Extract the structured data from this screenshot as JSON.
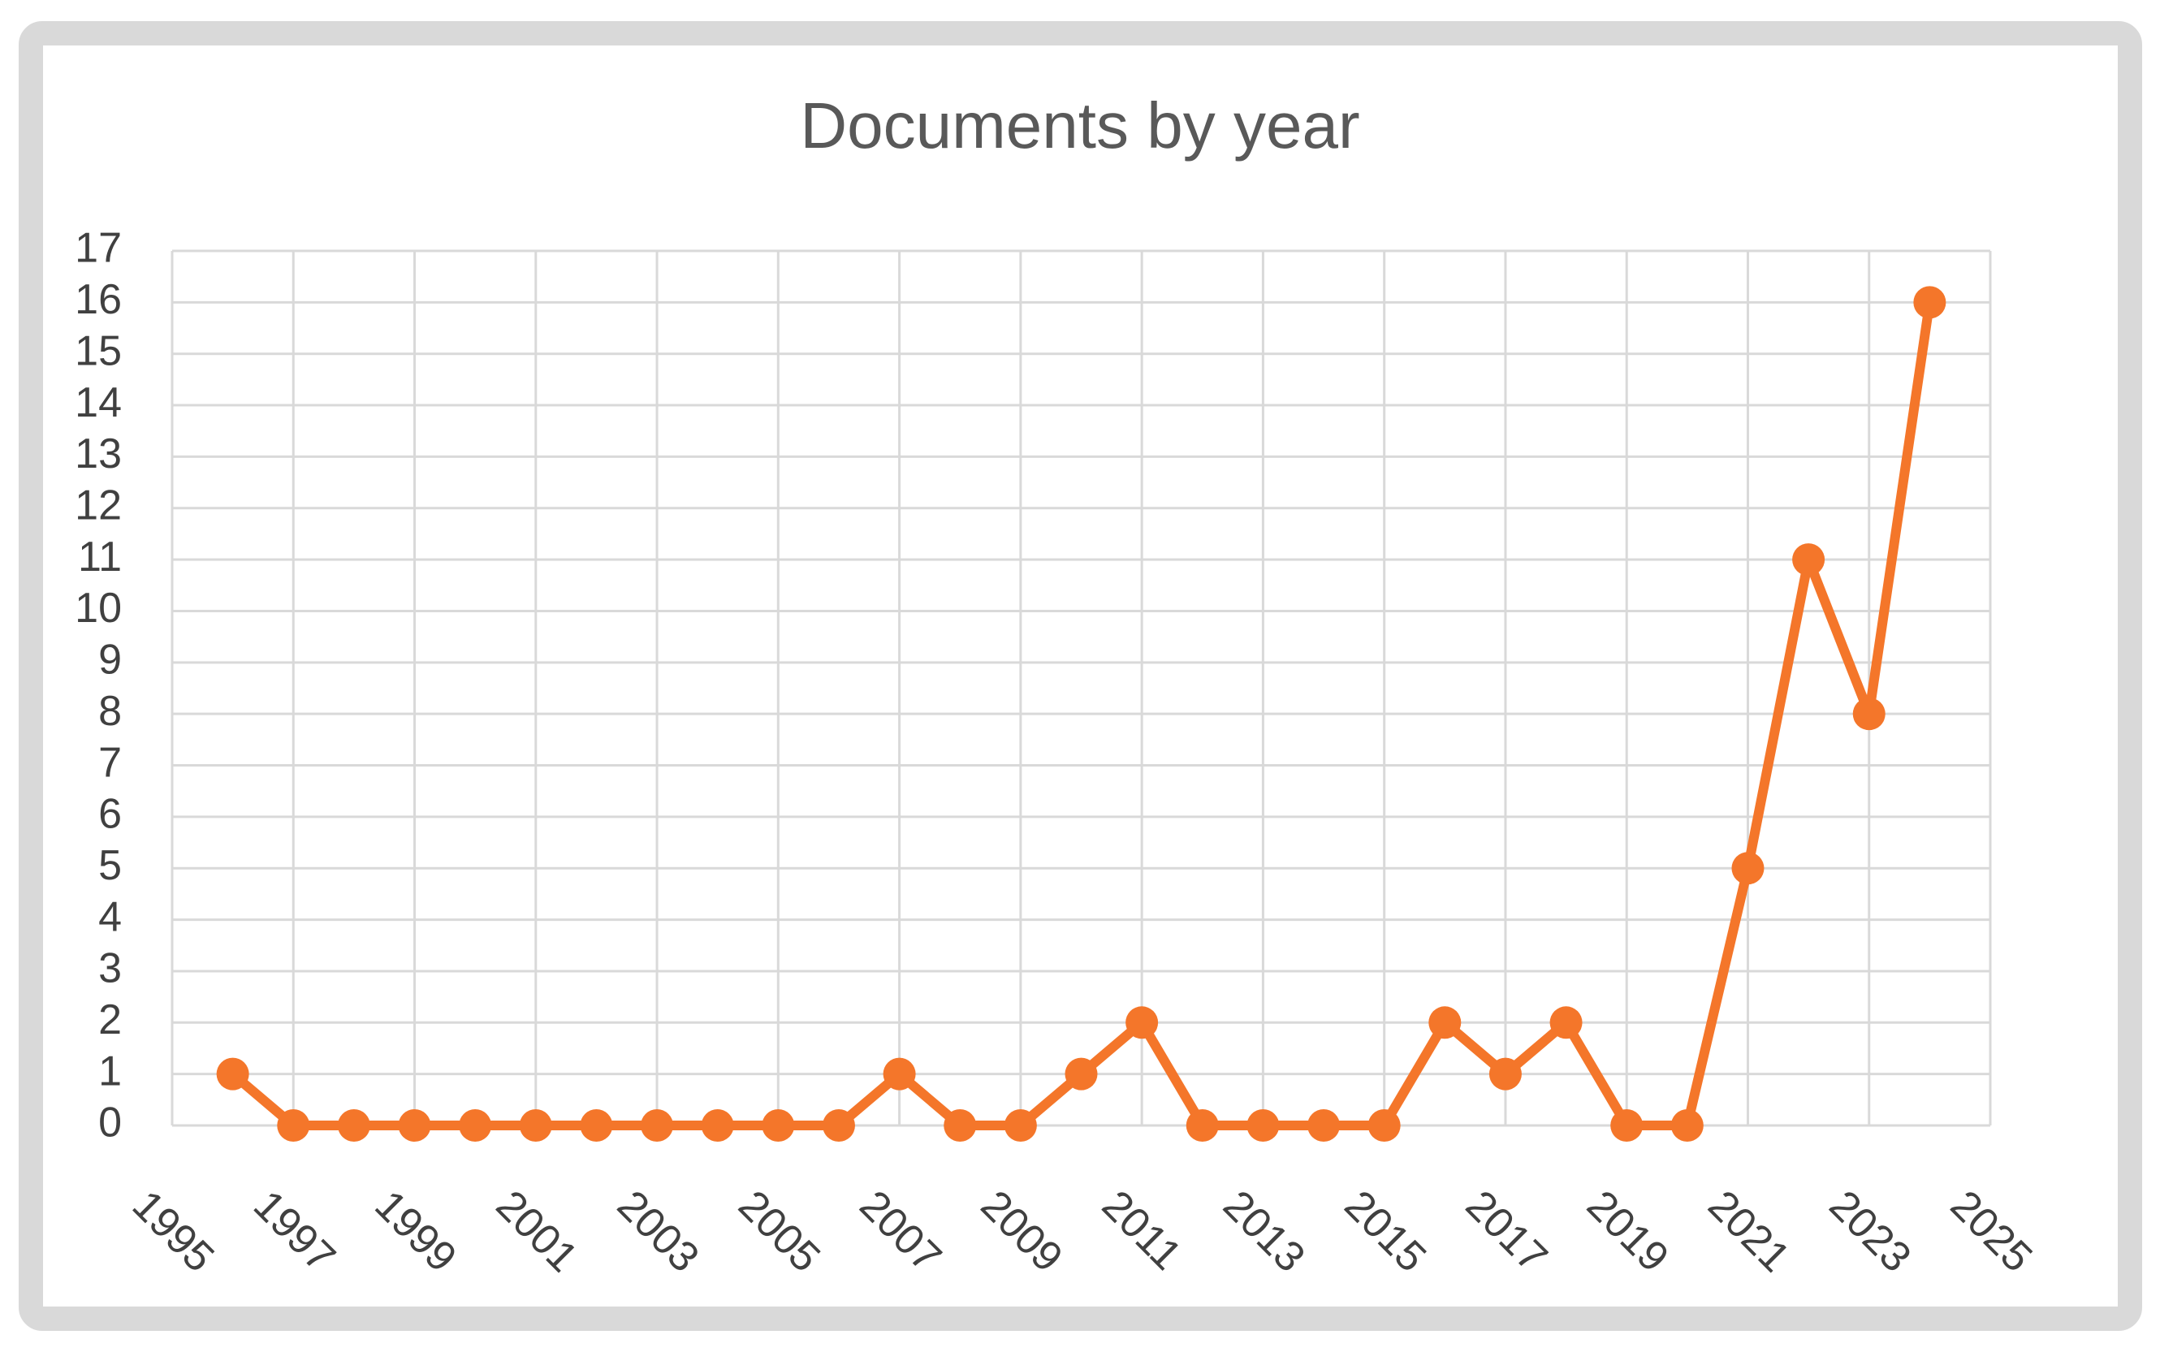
{
  "chart_data": {
    "type": "line",
    "title": "Documents by year",
    "x": [
      1996,
      1997,
      1998,
      1999,
      2000,
      2001,
      2002,
      2003,
      2004,
      2005,
      2006,
      2007,
      2008,
      2009,
      2010,
      2011,
      2012,
      2013,
      2014,
      2015,
      2016,
      2017,
      2018,
      2019,
      2020,
      2021,
      2022,
      2023,
      2024
    ],
    "values": [
      1,
      0,
      0,
      0,
      0,
      0,
      0,
      0,
      0,
      0,
      0,
      1,
      0,
      0,
      1,
      2,
      0,
      0,
      0,
      0,
      2,
      1,
      2,
      0,
      0,
      5,
      11,
      8,
      16
    ],
    "color": "#f4762a",
    "xlim": [
      1995,
      2025
    ],
    "xticks": [
      1995,
      1997,
      1999,
      2001,
      2003,
      2005,
      2007,
      2009,
      2011,
      2013,
      2015,
      2017,
      2019,
      2021,
      2023,
      2025
    ],
    "ylim": [
      0,
      17
    ],
    "yticks": [
      0,
      1,
      2,
      3,
      4,
      5,
      6,
      7,
      8,
      9,
      10,
      11,
      12,
      13,
      14,
      15,
      16,
      17
    ],
    "grid": true,
    "markers": true
  }
}
